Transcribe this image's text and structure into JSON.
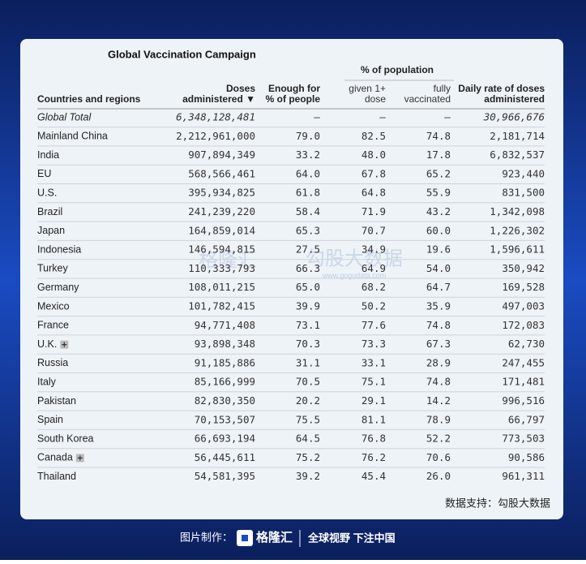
{
  "title": "Global Vaccination Campaign",
  "group_header": "% of population",
  "columns": [
    [
      "Countries and regions"
    ],
    [
      "Doses",
      "administered ▼"
    ],
    [
      "Enough for",
      "% of people"
    ],
    [
      "given 1+",
      "dose"
    ],
    [
      "fully",
      "vaccinated"
    ],
    [
      "Daily rate of doses",
      "administered"
    ]
  ],
  "rows": [
    [
      "Global Total",
      "6,348,128,481",
      "–",
      "–",
      "–",
      "30,966,676"
    ],
    [
      "Mainland China",
      "2,212,961,000",
      "79.0",
      "82.5",
      "74.8",
      "2,181,714"
    ],
    [
      "India",
      "907,894,349",
      "33.2",
      "48.0",
      "17.8",
      "6,832,537"
    ],
    [
      "EU",
      "568,566,461",
      "64.0",
      "67.8",
      "65.2",
      "923,440"
    ],
    [
      "U.S.",
      "395,934,825",
      "61.8",
      "64.8",
      "55.9",
      "831,500"
    ],
    [
      "Brazil",
      "241,239,220",
      "58.4",
      "71.9",
      "43.2",
      "1,342,098"
    ],
    [
      "Japan",
      "164,859,014",
      "65.3",
      "70.7",
      "60.0",
      "1,226,302"
    ],
    [
      "Indonesia",
      "146,594,815",
      "27.5",
      "34.9",
      "19.6",
      "1,596,611"
    ],
    [
      "Turkey",
      "110,333,793",
      "66.3",
      "64.9",
      "54.0",
      "350,942"
    ],
    [
      "Germany",
      "108,011,215",
      "65.0",
      "68.2",
      "64.7",
      "169,528"
    ],
    [
      "Mexico",
      "101,782,415",
      "39.9",
      "50.2",
      "35.9",
      "497,003"
    ],
    [
      "France",
      "94,771,408",
      "73.1",
      "77.6",
      "74.8",
      "172,083"
    ],
    [
      "U.K.",
      "93,898,348",
      "70.3",
      "73.3",
      "67.3",
      "62,730"
    ],
    [
      "Russia",
      "91,185,886",
      "31.1",
      "33.1",
      "28.9",
      "247,455"
    ],
    [
      "Italy",
      "85,166,999",
      "70.5",
      "75.1",
      "74.8",
      "171,481"
    ],
    [
      "Pakistan",
      "82,830,350",
      "20.2",
      "29.1",
      "14.2",
      "996,516"
    ],
    [
      "Spain",
      "70,153,507",
      "75.5",
      "81.1",
      "78.9",
      "66,797"
    ],
    [
      "South Korea",
      "66,693,194",
      "64.5",
      "76.8",
      "52.2",
      "773,503"
    ],
    [
      "Canada",
      "56,445,611",
      "75.2",
      "76.2",
      "70.6",
      "90,586"
    ],
    [
      "Thailand",
      "54,581,395",
      "39.2",
      "45.4",
      "26.0",
      "961,311"
    ]
  ],
  "source": "数据支持：勾股大数据",
  "watermark": {
    "left": "格隆汇",
    "right": "勾股大数据",
    "url": "www.gogudata.com"
  },
  "footer": {
    "made_by": "图片制作：",
    "logo": "格隆汇",
    "slogan": "全球视野 下注中国"
  }
}
